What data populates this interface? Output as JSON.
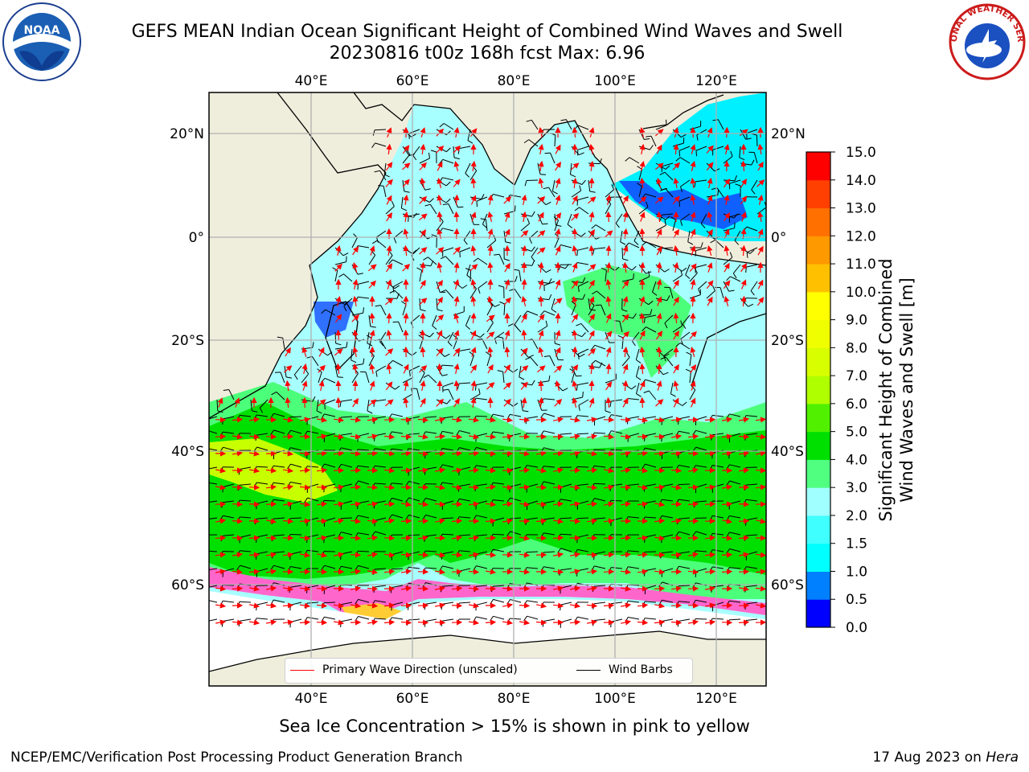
{
  "header": {
    "title_line1": "GEFS MEAN Indian Ocean Significant Height of Combined Wind Waves and Swell",
    "title_line2": "20230816 t00z 168h fcst   Max: 6.96"
  },
  "logos": {
    "left": {
      "icon": "noaa-logo",
      "text": "NOAA"
    },
    "right": {
      "icon": "nws-logo",
      "text": "NATIONAL WEATHER SERVICE"
    }
  },
  "colors": {
    "land": "#efeedd",
    "ocean_low": "#7fffff",
    "ocean_mid": "#00ff00",
    "wave_arrow": "#ff0000",
    "wind_barb": "#000000",
    "grid": "#b0b0b0"
  },
  "map": {
    "lon_ticks": [
      "40°E",
      "60°E",
      "80°E",
      "100°E",
      "120°E"
    ],
    "lat_ticks": [
      "20°N",
      "0°",
      "20°S",
      "40°S",
      "60°S"
    ]
  },
  "colorbar": {
    "label": "Significant Height of Combined Wind Waves and Swell [m]",
    "label_line1": "Significant Height of Combined",
    "label_line2": "Wind Waves and Swell [m]",
    "ticks": [
      "0.0",
      "0.5",
      "1.0",
      "1.5",
      "2.0",
      "3.0",
      "4.0",
      "5.0",
      "6.0",
      "7.0",
      "8.0",
      "9.0",
      "10.0",
      "11.0",
      "12.0",
      "13.0",
      "14.0",
      "15.0"
    ],
    "colors": [
      "#0000ff",
      "#0080ff",
      "#00ffff",
      "#40ffff",
      "#a0ffff",
      "#50ff80",
      "#00e000",
      "#50f000",
      "#b0ff00",
      "#d8ff00",
      "#f0ff00",
      "#ffff00",
      "#ffc000",
      "#ff9900",
      "#ff7000",
      "#ff4000",
      "#ff0000"
    ]
  },
  "legend": {
    "primary_wave": "Primary Wave Direction (unscaled)",
    "wind_barbs": "Wind Barbs"
  },
  "notes": {
    "ice": "Sea Ice Concentration > 15% is shown in pink to yellow"
  },
  "footer": {
    "left": "NCEP/EMC/Verification Post Processing Product Generation Branch",
    "date": "17 Aug 2023 on",
    "machine": "Hera"
  }
}
